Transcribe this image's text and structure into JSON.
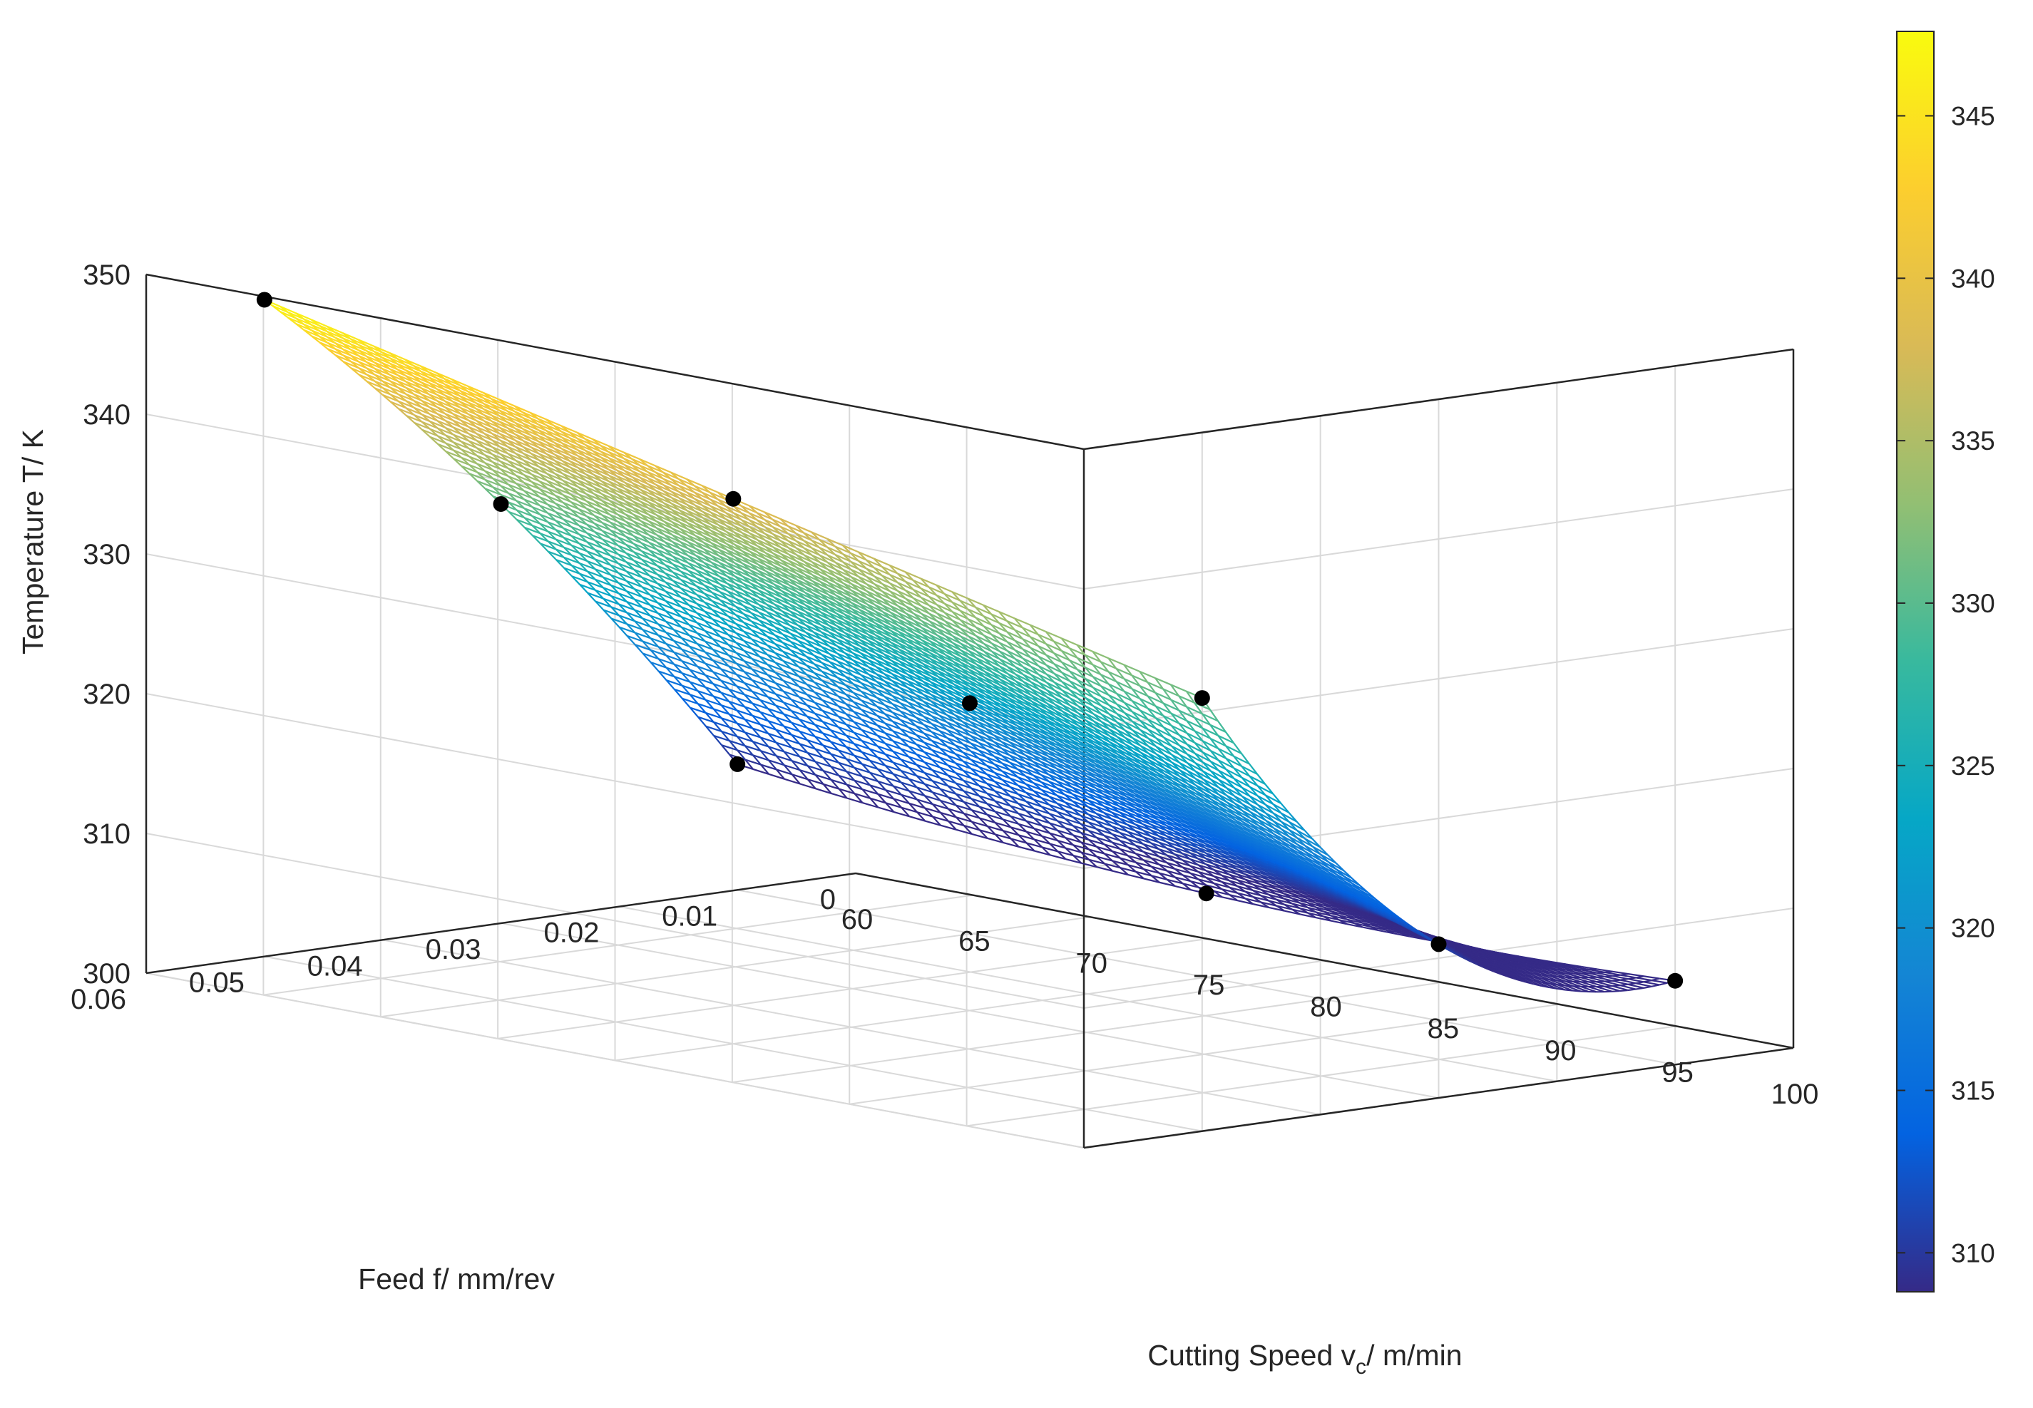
{
  "chart_data": {
    "type": "surface3d",
    "title": "",
    "axes": {
      "x": {
        "label": "Cutting Speed v",
        "label_subscript": "c",
        "label_suffix": "/ m/min",
        "range": [
          60,
          100
        ],
        "ticks": [
          "60",
          "65",
          "70",
          "75",
          "80",
          "85",
          "90",
          "95",
          "100"
        ]
      },
      "y": {
        "label": "Feed f/ mm/rev",
        "range": [
          0,
          0.06
        ],
        "ticks": [
          "0",
          "0.01",
          "0.02",
          "0.03",
          "0.04",
          "0.05",
          "0.06"
        ]
      },
      "z": {
        "label": "Temperature T/ K",
        "range": [
          300,
          350
        ],
        "ticks": [
          "300",
          "310",
          "320",
          "330",
          "340",
          "350"
        ]
      }
    },
    "grid": true,
    "surface": {
      "x_range": [
        60,
        100
      ],
      "y_range": [
        0.01,
        0.05
      ],
      "corners": {
        "v60_f0.01": 309,
        "v100_f0.01": 306,
        "v60_f0.05": 347,
        "v100_f0.05": 331
      },
      "edges": {
        "v60_f0.03": 330,
        "v80_f0.05": 339,
        "v100_f0.03": 311,
        "v80_f0.01": 306
      },
      "center": {
        "v80_f0.03": 322
      }
    },
    "points": [
      {
        "v": 60,
        "f": 0.01,
        "T": 309
      },
      {
        "v": 60,
        "f": 0.03,
        "T": 330
      },
      {
        "v": 60,
        "f": 0.05,
        "T": 347
      },
      {
        "v": 80,
        "f": 0.05,
        "T": 339
      },
      {
        "v": 100,
        "f": 0.05,
        "T": 331
      },
      {
        "v": 100,
        "f": 0.03,
        "T": 311
      },
      {
        "v": 100,
        "f": 0.01,
        "T": 306
      },
      {
        "v": 80,
        "f": 0.01,
        "T": 306
      },
      {
        "v": 80,
        "f": 0.03,
        "T": 322
      }
    ],
    "colorbar": {
      "range": [
        308.8,
        347.6
      ],
      "ticks": [
        "310",
        "315",
        "320",
        "325",
        "330",
        "335",
        "340",
        "345"
      ],
      "colormap": "parula",
      "colors": [
        "#352a87",
        "#0363e1",
        "#1485d4",
        "#06a7c6",
        "#38b99e",
        "#92bf73",
        "#d9ba56",
        "#fcce2e",
        "#f9fb0e"
      ]
    }
  }
}
